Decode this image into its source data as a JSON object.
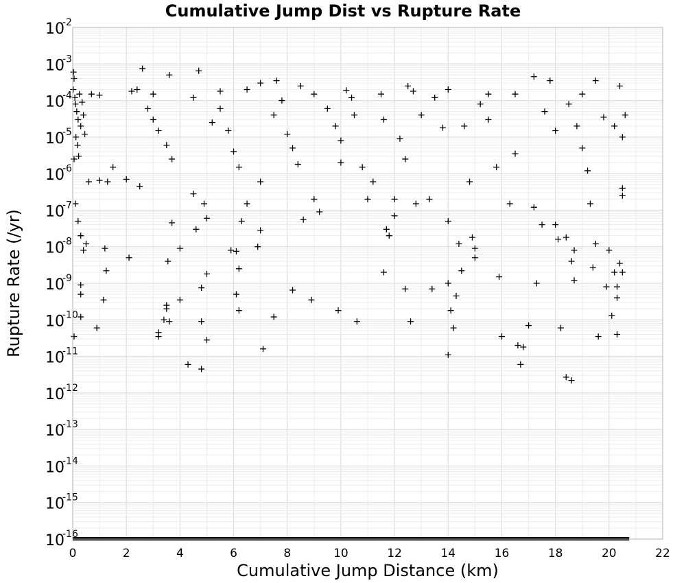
{
  "chart_data": {
    "type": "scatter",
    "title": "Cumulative Jump Dist vs Rupture Rate",
    "xlabel": "Cumulative Jump Distance (km)",
    "ylabel": "Rupture Rate (/yr)",
    "xlim": [
      0,
      22
    ],
    "ylim": [
      1e-16,
      0.01
    ],
    "yscale": "log",
    "grid": true,
    "marker": "plus",
    "marker_color": "#000000",
    "xticks": [
      0,
      2,
      4,
      6,
      8,
      10,
      12,
      14,
      16,
      18,
      20,
      22
    ],
    "yticks": [
      {
        "base": "10",
        "exp": "-2"
      },
      {
        "base": "10",
        "exp": "-3"
      },
      {
        "base": "10",
        "exp": "-4"
      },
      {
        "base": "10",
        "exp": "-5"
      },
      {
        "base": "10",
        "exp": "-6"
      },
      {
        "base": "10",
        "exp": "-7"
      },
      {
        "base": "10",
        "exp": "-8"
      },
      {
        "base": "10",
        "exp": "-9"
      },
      {
        "base": "10",
        "exp": "-10"
      },
      {
        "base": "10",
        "exp": "-11"
      },
      {
        "base": "10",
        "exp": "-12"
      },
      {
        "base": "10",
        "exp": "-13"
      },
      {
        "base": "10",
        "exp": "-14"
      },
      {
        "base": "10",
        "exp": "-15"
      },
      {
        "base": "10",
        "exp": "-16"
      }
    ],
    "points": [
      [
        0.02,
        0.0002
      ],
      [
        0.05,
        0.0004
      ],
      [
        0.03,
        0.0006
      ],
      [
        0.08,
        0.00012
      ],
      [
        0.1,
        8e-05
      ],
      [
        0.15,
        5e-05
      ],
      [
        0.2,
        3e-05
      ],
      [
        0.25,
        0.00015
      ],
      [
        0.3,
        2e-05
      ],
      [
        0.12,
        1e-05
      ],
      [
        0.18,
        6e-06
      ],
      [
        0.22,
        3e-06
      ],
      [
        0.35,
        9e-05
      ],
      [
        0.4,
        4e-05
      ],
      [
        0.45,
        1.2e-05
      ],
      [
        0.05,
        2.5e-06
      ],
      [
        0.1,
        1.5e-07
      ],
      [
        0.2,
        5e-08
      ],
      [
        0.3,
        2e-08
      ],
      [
        0.4,
        8e-09
      ],
      [
        0.5,
        1.2e-08
      ],
      [
        0.3,
        9e-10
      ],
      [
        0.3,
        5e-10
      ],
      [
        0.3,
        1.2e-10
      ],
      [
        0.05,
        3.5e-11
      ],
      [
        0.9,
        6e-11
      ],
      [
        1.2,
        9e-09
      ],
      [
        1.25,
        2.2e-09
      ],
      [
        1.15,
        3.5e-10
      ],
      [
        0.6,
        6e-07
      ],
      [
        1.0,
        6.5e-07
      ],
      [
        1.3,
        6e-07
      ],
      [
        1.5,
        1.5e-06
      ],
      [
        2.0,
        7e-07
      ],
      [
        2.1,
        5e-09
      ],
      [
        2.5,
        4.5e-07
      ],
      [
        2.6,
        0.00075
      ],
      [
        2.4,
        0.0002
      ],
      [
        2.8,
        6e-05
      ],
      [
        3.0,
        3e-05
      ],
      [
        3.2,
        1.5e-05
      ],
      [
        3.5,
        6e-06
      ],
      [
        3.7,
        2.5e-06
      ],
      [
        3.6,
        0.0005
      ],
      [
        3.7,
        4.5e-08
      ],
      [
        3.55,
        4e-09
      ],
      [
        4.0,
        9e-09
      ],
      [
        4.0,
        3.5e-10
      ],
      [
        3.5,
        2.5e-10
      ],
      [
        3.5,
        2e-10
      ],
      [
        3.4,
        1e-10
      ],
      [
        3.6,
        9e-11
      ],
      [
        3.2,
        4.5e-11
      ],
      [
        3.2,
        3.5e-11
      ],
      [
        4.3,
        6e-12
      ],
      [
        4.8,
        4.5e-12
      ],
      [
        4.6,
        3e-08
      ],
      [
        4.5,
        2.8e-07
      ],
      [
        4.9,
        1.5e-07
      ],
      [
        5.0,
        6e-08
      ],
      [
        4.8,
        7.5e-10
      ],
      [
        5.0,
        1.8e-09
      ],
      [
        4.8,
        9e-11
      ],
      [
        5.0,
        2.8e-11
      ],
      [
        4.7,
        0.00065
      ],
      [
        4.5,
        0.00012
      ],
      [
        5.2,
        2.5e-05
      ],
      [
        5.5,
        6e-05
      ],
      [
        5.8,
        1.5e-05
      ],
      [
        6.0,
        4e-06
      ],
      [
        6.2,
        1.5e-06
      ],
      [
        6.3,
        5e-08
      ],
      [
        5.9,
        8e-09
      ],
      [
        6.1,
        7.5e-09
      ],
      [
        6.2,
        2.5e-09
      ],
      [
        6.1,
        5e-10
      ],
      [
        6.2,
        1.8e-10
      ],
      [
        6.5,
        1.5e-07
      ],
      [
        7.0,
        6e-07
      ],
      [
        7.0,
        2.8e-08
      ],
      [
        6.9,
        1e-08
      ],
      [
        7.1,
        1.6e-11
      ],
      [
        7.5,
        1.2e-10
      ],
      [
        7.0,
        0.0003
      ],
      [
        7.6,
        0.00035
      ],
      [
        7.8,
        0.0001
      ],
      [
        7.5,
        4e-05
      ],
      [
        8.0,
        1.2e-05
      ],
      [
        8.2,
        5e-06
      ],
      [
        8.4,
        1.8e-06
      ],
      [
        8.2,
        6.5e-10
      ],
      [
        8.6,
        5.5e-08
      ],
      [
        8.9,
        3.5e-10
      ],
      [
        9.0,
        2e-07
      ],
      [
        9.2,
        9e-08
      ],
      [
        8.5,
        0.00025
      ],
      [
        9.0,
        0.00015
      ],
      [
        9.5,
        6e-05
      ],
      [
        9.8,
        2e-05
      ],
      [
        10.0,
        8e-06
      ],
      [
        10.0,
        2e-06
      ],
      [
        9.9,
        1.8e-10
      ],
      [
        10.4,
        0.00012
      ],
      [
        10.5,
        4e-05
      ],
      [
        10.6,
        9e-11
      ],
      [
        10.8,
        1.5e-06
      ],
      [
        11.0,
        2e-07
      ],
      [
        11.2,
        6e-07
      ],
      [
        11.5,
        0.00015
      ],
      [
        11.6,
        3e-05
      ],
      [
        11.7,
        3e-08
      ],
      [
        11.8,
        2e-08
      ],
      [
        11.6,
        2e-09
      ],
      [
        12.0,
        2e-07
      ],
      [
        12.0,
        7e-08
      ],
      [
        12.2,
        9e-06
      ],
      [
        12.4,
        2.5e-06
      ],
      [
        12.5,
        0.00025
      ],
      [
        12.6,
        9e-11
      ],
      [
        12.4,
        7e-10
      ],
      [
        12.8,
        1.5e-07
      ],
      [
        13.0,
        4e-05
      ],
      [
        13.3,
        2e-07
      ],
      [
        13.4,
        7e-10
      ],
      [
        13.5,
        0.00012
      ],
      [
        13.8,
        1.8e-05
      ],
      [
        14.0,
        0.0002
      ],
      [
        14.0,
        5e-08
      ],
      [
        14.1,
        1.8e-10
      ],
      [
        14.0,
        1.1e-11
      ],
      [
        14.2,
        6e-11
      ],
      [
        14.0,
        1e-09
      ],
      [
        14.3,
        4.5e-10
      ],
      [
        14.4,
        1.2e-08
      ],
      [
        14.5,
        2.2e-09
      ],
      [
        14.8,
        6e-07
      ],
      [
        14.9,
        1.8e-08
      ],
      [
        15.0,
        9e-09
      ],
      [
        15.0,
        5e-09
      ],
      [
        14.6,
        2e-05
      ],
      [
        15.2,
        8e-05
      ],
      [
        15.5,
        3e-05
      ],
      [
        15.8,
        1.5e-06
      ],
      [
        16.0,
        3.5e-11
      ],
      [
        15.9,
        1.5e-09
      ],
      [
        16.3,
        1.5e-07
      ],
      [
        16.5,
        3.5e-06
      ],
      [
        16.6,
        2e-11
      ],
      [
        16.8,
        1.8e-11
      ],
      [
        16.7,
        6e-12
      ],
      [
        17.0,
        7e-11
      ],
      [
        17.2,
        1.2e-07
      ],
      [
        17.3,
        1e-09
      ],
      [
        17.5,
        4e-08
      ],
      [
        17.6,
        5e-05
      ],
      [
        17.2,
        0.00045
      ],
      [
        17.8,
        0.00035
      ],
      [
        18.0,
        1.5e-05
      ],
      [
        18.0,
        4e-08
      ],
      [
        18.1,
        1.6e-08
      ],
      [
        18.2,
        6e-11
      ],
      [
        18.4,
        1.8e-08
      ],
      [
        18.6,
        4e-09
      ],
      [
        18.7,
        1.2e-09
      ],
      [
        18.7,
        8e-09
      ],
      [
        18.4,
        2.7e-12
      ],
      [
        18.6,
        2.2e-12
      ],
      [
        18.5,
        8e-05
      ],
      [
        18.8,
        2e-05
      ],
      [
        19.0,
        5e-06
      ],
      [
        19.2,
        1.2e-06
      ],
      [
        19.3,
        1.5e-07
      ],
      [
        19.5,
        1.2e-08
      ],
      [
        19.4,
        2.7e-09
      ],
      [
        19.6,
        3.5e-11
      ],
      [
        19.9,
        8e-10
      ],
      [
        20.1,
        1.3e-10
      ],
      [
        20.2,
        2e-09
      ],
      [
        20.3,
        8e-10
      ],
      [
        20.3,
        4e-10
      ],
      [
        20.3,
        4e-11
      ],
      [
        20.4,
        3.5e-09
      ],
      [
        20.5,
        2e-09
      ],
      [
        20.5,
        4e-07
      ],
      [
        20.5,
        2.5e-07
      ],
      [
        20.0,
        8e-09
      ],
      [
        19.8,
        3.5e-05
      ],
      [
        20.2,
        2e-05
      ],
      [
        20.5,
        1e-05
      ],
      [
        20.6,
        4e-05
      ],
      [
        20.4,
        0.00025
      ],
      [
        19.5,
        0.00035
      ],
      [
        19.0,
        0.00015
      ],
      [
        16.5,
        0.00015
      ],
      [
        15.5,
        0.00015
      ],
      [
        12.7,
        0.00018
      ],
      [
        10.2,
        0.00019
      ],
      [
        6.5,
        0.0002
      ],
      [
        5.5,
        0.00018
      ],
      [
        3.0,
        0.00015
      ],
      [
        1.0,
        0.00014
      ],
      [
        2.2,
        0.00018
      ],
      [
        0.7,
        0.00015
      ]
    ]
  }
}
